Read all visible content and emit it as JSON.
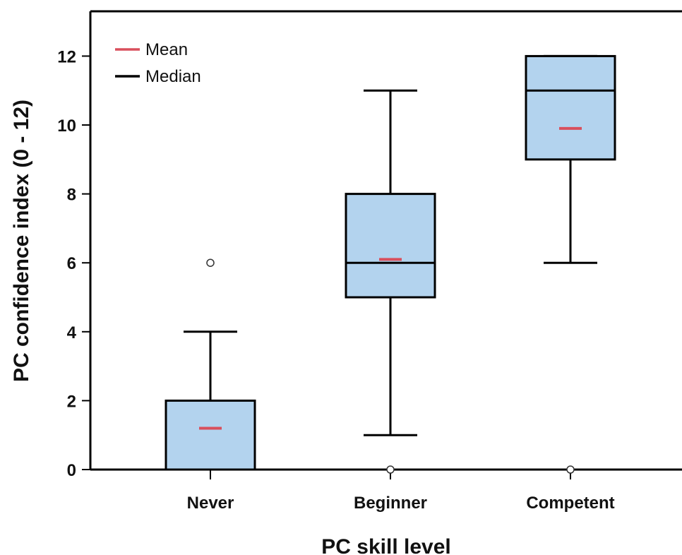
{
  "chart_data": {
    "type": "boxplot",
    "xlabel": "PC skill level",
    "ylabel": "PC confidence index (0 - 12)",
    "ylim": [
      0,
      13.3
    ],
    "yticks": [
      0,
      2,
      4,
      6,
      8,
      10,
      12
    ],
    "categories": [
      "Never",
      "Beginner",
      "Competent"
    ],
    "boxes": [
      {
        "category": "Never",
        "whisker_low": 0,
        "q1": 0,
        "median": 0,
        "q3": 2,
        "whisker_high": 4,
        "mean": 1.2,
        "outliers": [
          6
        ]
      },
      {
        "category": "Beginner",
        "whisker_low": 1,
        "q1": 5,
        "median": 6,
        "q3": 8,
        "whisker_high": 11,
        "mean": 6.1,
        "outliers": [
          0
        ]
      },
      {
        "category": "Competent",
        "whisker_low": 6,
        "q1": 9,
        "median": 11,
        "q3": 12,
        "whisker_high": 12,
        "mean": 9.9,
        "outliers": [
          0
        ]
      }
    ],
    "legend": {
      "position": "top-left",
      "items": [
        {
          "label": "Mean",
          "color": "#d94f5c"
        },
        {
          "label": "Median",
          "color": "#000000"
        }
      ]
    },
    "grid": false,
    "colors": {
      "box_fill": "#b3d3ee",
      "mean": "#d94f5c",
      "median": "#000000",
      "axis": "#000000"
    }
  }
}
